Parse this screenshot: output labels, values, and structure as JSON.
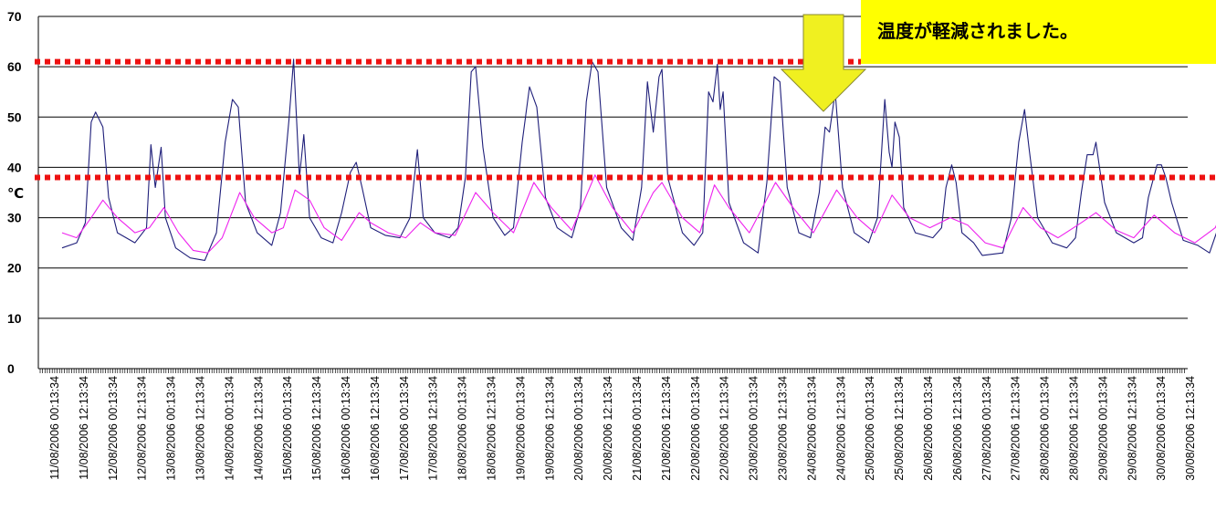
{
  "chart_data": {
    "type": "line",
    "ylabel": "℃",
    "ylim": [
      0,
      70
    ],
    "yticks": [
      0,
      10,
      20,
      30,
      40,
      50,
      60,
      70
    ],
    "grid": "horizontal",
    "categories": [
      "11/08/2006 00:13:34",
      "11/08/2006 12:13:34",
      "12/08/2006 00:13:34",
      "12/08/2006 12:13:34",
      "13/08/2006 00:13:34",
      "13/08/2006 12:13:34",
      "14/08/2006 00:13:34",
      "14/08/2006 12:13:34",
      "15/08/2006 00:13:34",
      "15/08/2006 12:13:34",
      "16/08/2006 00:13:34",
      "16/08/2006 12:13:34",
      "17/08/2006 00:13:34",
      "17/08/2006 12:13:34",
      "18/08/2006 00:13:34",
      "18/08/2006 12:13:34",
      "19/08/2006 00:13:34",
      "19/08/2006 12:13:34",
      "20/08/2006 00:13:34",
      "20/08/2006 12:13:34",
      "21/08/2006 00:13:34",
      "21/08/2006 12:13:34",
      "22/08/2006 00:13:34",
      "22/08/2006 12:13:34",
      "23/08/2006 00:13:34",
      "23/08/2006 12:13:34",
      "24/08/2006 00:13:34",
      "24/08/2006 12:13:34",
      "25/08/2006 00:13:34",
      "25/08/2006 12:13:34",
      "26/08/2006 00:13:34",
      "26/08/2006 12:13:34",
      "27/08/2006 00:13:34",
      "27/08/2006 12:13:34",
      "28/08/2006 00:13:34",
      "28/08/2006 12:13:34",
      "29/08/2006 00:13:34",
      "29/08/2006 12:13:34",
      "30/08/2006 00:13:34",
      "30/08/2006 12:13:34"
    ],
    "series": [
      {
        "color": "#1f1f7a",
        "values": [
          [
            0.0,
            24.0
          ],
          [
            0.5,
            25.0
          ],
          [
            0.8,
            29.0
          ],
          [
            1.0,
            49.0
          ],
          [
            1.15,
            51.0
          ],
          [
            1.4,
            48.0
          ],
          [
            1.6,
            34.0
          ],
          [
            1.9,
            27.0
          ],
          [
            2.5,
            25.0
          ],
          [
            2.9,
            28.0
          ],
          [
            3.05,
            44.5
          ],
          [
            3.2,
            36.0
          ],
          [
            3.4,
            44.0
          ],
          [
            3.55,
            30.0
          ],
          [
            3.9,
            24.0
          ],
          [
            4.4,
            22.0
          ],
          [
            4.9,
            21.5
          ],
          [
            5.3,
            27.0
          ],
          [
            5.6,
            45.0
          ],
          [
            5.85,
            53.5
          ],
          [
            6.05,
            52.0
          ],
          [
            6.3,
            33.0
          ],
          [
            6.7,
            27.0
          ],
          [
            7.2,
            24.5
          ],
          [
            7.5,
            31.0
          ],
          [
            7.8,
            50.0
          ],
          [
            7.95,
            61.5
          ],
          [
            8.15,
            38.0
          ],
          [
            8.3,
            46.5
          ],
          [
            8.5,
            30.0
          ],
          [
            8.9,
            26.0
          ],
          [
            9.3,
            25.0
          ],
          [
            9.6,
            31.0
          ],
          [
            9.9,
            39.0
          ],
          [
            10.1,
            41.0
          ],
          [
            10.3,
            36.0
          ],
          [
            10.6,
            28.0
          ],
          [
            11.1,
            26.5
          ],
          [
            11.6,
            26.0
          ],
          [
            11.95,
            30.0
          ],
          [
            12.2,
            43.5
          ],
          [
            12.4,
            30.0
          ],
          [
            12.8,
            27.0
          ],
          [
            13.3,
            26.0
          ],
          [
            13.6,
            28.0
          ],
          [
            13.85,
            38.0
          ],
          [
            14.05,
            59.0
          ],
          [
            14.2,
            60.0
          ],
          [
            14.45,
            44.0
          ],
          [
            14.8,
            30.0
          ],
          [
            15.2,
            26.5
          ],
          [
            15.5,
            28.0
          ],
          [
            15.8,
            45.0
          ],
          [
            16.05,
            56.0
          ],
          [
            16.3,
            52.0
          ],
          [
            16.6,
            34.0
          ],
          [
            17.0,
            28.0
          ],
          [
            17.5,
            26.0
          ],
          [
            17.8,
            32.0
          ],
          [
            18.0,
            53.0
          ],
          [
            18.2,
            61.0
          ],
          [
            18.4,
            59.0
          ],
          [
            18.7,
            36.0
          ],
          [
            19.2,
            28.0
          ],
          [
            19.6,
            25.5
          ],
          [
            19.9,
            36.0
          ],
          [
            20.1,
            57.0
          ],
          [
            20.3,
            47.0
          ],
          [
            20.5,
            58.0
          ],
          [
            20.6,
            59.5
          ],
          [
            20.8,
            38.0
          ],
          [
            21.3,
            27.0
          ],
          [
            21.7,
            24.5
          ],
          [
            22.0,
            27.0
          ],
          [
            22.2,
            55.0
          ],
          [
            22.35,
            53.0
          ],
          [
            22.5,
            60.5
          ],
          [
            22.6,
            51.5
          ],
          [
            22.7,
            55.0
          ],
          [
            22.9,
            33.0
          ],
          [
            23.4,
            25.0
          ],
          [
            23.9,
            23.0
          ],
          [
            24.2,
            37.0
          ],
          [
            24.45,
            58.0
          ],
          [
            24.65,
            57.0
          ],
          [
            24.9,
            36.0
          ],
          [
            25.3,
            27.0
          ],
          [
            25.7,
            26.0
          ],
          [
            26.0,
            35.0
          ],
          [
            26.2,
            48.0
          ],
          [
            26.35,
            47.0
          ],
          [
            26.55,
            55.0
          ],
          [
            26.8,
            36.0
          ],
          [
            27.2,
            27.0
          ],
          [
            27.7,
            25.0
          ],
          [
            28.0,
            30.0
          ],
          [
            28.25,
            53.5
          ],
          [
            28.4,
            43.0
          ],
          [
            28.5,
            40.0
          ],
          [
            28.6,
            49.0
          ],
          [
            28.75,
            46.0
          ],
          [
            28.9,
            32.0
          ],
          [
            29.3,
            27.0
          ],
          [
            29.9,
            26.0
          ],
          [
            30.2,
            28.0
          ],
          [
            30.35,
            36.0
          ],
          [
            30.55,
            40.5
          ],
          [
            30.7,
            37.0
          ],
          [
            30.9,
            27.0
          ],
          [
            31.3,
            25.0
          ],
          [
            31.6,
            22.5
          ],
          [
            32.3,
            23.0
          ],
          [
            32.6,
            30.0
          ],
          [
            32.85,
            45.0
          ],
          [
            33.05,
            51.5
          ],
          [
            33.2,
            44.0
          ],
          [
            33.5,
            30.0
          ],
          [
            34.0,
            25.0
          ],
          [
            34.5,
            24.0
          ],
          [
            34.8,
            26.0
          ],
          [
            35.0,
            35.0
          ],
          [
            35.2,
            42.5
          ],
          [
            35.4,
            42.5
          ],
          [
            35.5,
            45.0
          ],
          [
            35.6,
            41.0
          ],
          [
            35.8,
            33.0
          ],
          [
            36.2,
            27.0
          ],
          [
            36.8,
            25.0
          ],
          [
            37.1,
            26.0
          ],
          [
            37.3,
            34.0
          ],
          [
            37.6,
            40.5
          ],
          [
            37.75,
            40.5
          ],
          [
            37.9,
            38.0
          ],
          [
            38.1,
            33.0
          ],
          [
            38.5,
            25.5
          ],
          [
            39.0,
            24.5
          ],
          [
            39.4,
            23.0
          ],
          [
            39.7,
            28.0
          ],
          [
            39.95,
            54.0
          ],
          [
            40.2,
            55.0
          ],
          [
            40.4,
            51.0
          ],
          [
            40.7,
            33.0
          ],
          [
            41.1,
            26.0
          ],
          [
            41.7,
            24.5
          ],
          [
            42.2,
            25.0
          ],
          [
            42.45,
            33.0
          ],
          [
            42.6,
            31.0
          ],
          [
            42.9,
            32.0
          ],
          [
            43.1,
            37.0
          ],
          [
            43.3,
            32.0
          ],
          [
            43.5,
            26.0
          ],
          [
            43.9,
            24.5
          ],
          [
            44.1,
            23.5
          ]
        ]
      },
      {
        "color": "#ee22ee",
        "values": [
          [
            0.0,
            27.0
          ],
          [
            0.5,
            26.0
          ],
          [
            1.0,
            30.0
          ],
          [
            1.4,
            33.5
          ],
          [
            1.9,
            30.0
          ],
          [
            2.5,
            27.0
          ],
          [
            3.0,
            28.0
          ],
          [
            3.5,
            32.0
          ],
          [
            4.0,
            27.0
          ],
          [
            4.5,
            23.5
          ],
          [
            5.0,
            23.0
          ],
          [
            5.5,
            26.0
          ],
          [
            6.1,
            35.0
          ],
          [
            6.6,
            30.0
          ],
          [
            7.2,
            27.0
          ],
          [
            7.6,
            28.0
          ],
          [
            8.0,
            35.5
          ],
          [
            8.5,
            33.5
          ],
          [
            9.0,
            28.0
          ],
          [
            9.6,
            25.5
          ],
          [
            10.2,
            31.0
          ],
          [
            10.6,
            29.0
          ],
          [
            11.2,
            27.0
          ],
          [
            11.8,
            26.0
          ],
          [
            12.3,
            29.0
          ],
          [
            12.8,
            27.0
          ],
          [
            13.5,
            26.5
          ],
          [
            14.2,
            35.0
          ],
          [
            14.8,
            31.0
          ],
          [
            15.5,
            27.0
          ],
          [
            16.2,
            37.0
          ],
          [
            16.8,
            32.0
          ],
          [
            17.5,
            27.5
          ],
          [
            18.3,
            38.5
          ],
          [
            18.9,
            32.0
          ],
          [
            19.6,
            27.0
          ],
          [
            20.3,
            35.0
          ],
          [
            20.6,
            37.0
          ],
          [
            21.3,
            30.0
          ],
          [
            21.9,
            27.0
          ],
          [
            22.4,
            36.5
          ],
          [
            22.9,
            32.0
          ],
          [
            23.6,
            27.0
          ],
          [
            24.5,
            37.0
          ],
          [
            25.1,
            32.0
          ],
          [
            25.8,
            27.0
          ],
          [
            26.6,
            35.5
          ],
          [
            27.3,
            30.0
          ],
          [
            27.9,
            27.0
          ],
          [
            28.5,
            34.5
          ],
          [
            29.1,
            30.0
          ],
          [
            29.8,
            28.0
          ],
          [
            30.5,
            30.0
          ],
          [
            31.1,
            28.5
          ],
          [
            31.7,
            25.0
          ],
          [
            32.3,
            24.0
          ],
          [
            33.0,
            32.0
          ],
          [
            33.6,
            28.0
          ],
          [
            34.2,
            26.0
          ],
          [
            35.0,
            29.0
          ],
          [
            35.5,
            31.0
          ],
          [
            36.2,
            27.5
          ],
          [
            36.8,
            26.0
          ],
          [
            37.5,
            30.5
          ],
          [
            38.2,
            27.0
          ],
          [
            38.9,
            25.0
          ],
          [
            39.6,
            28.0
          ],
          [
            40.2,
            36.0
          ],
          [
            40.8,
            32.0
          ],
          [
            41.5,
            29.0
          ],
          [
            42.2,
            27.0
          ],
          [
            42.7,
            29.0
          ],
          [
            43.2,
            29.5
          ],
          [
            43.7,
            27.0
          ],
          [
            44.1,
            25.5
          ]
        ]
      }
    ],
    "reference_lines": [
      {
        "value": 61,
        "color": "#ee1111",
        "style": "dotted"
      },
      {
        "value": 38,
        "color": "#ee1111",
        "style": "dotted"
      }
    ]
  },
  "callout": {
    "text": "温度が軽減されました。",
    "box_color": "#ffff00",
    "arrow_color": "#f0f020"
  }
}
